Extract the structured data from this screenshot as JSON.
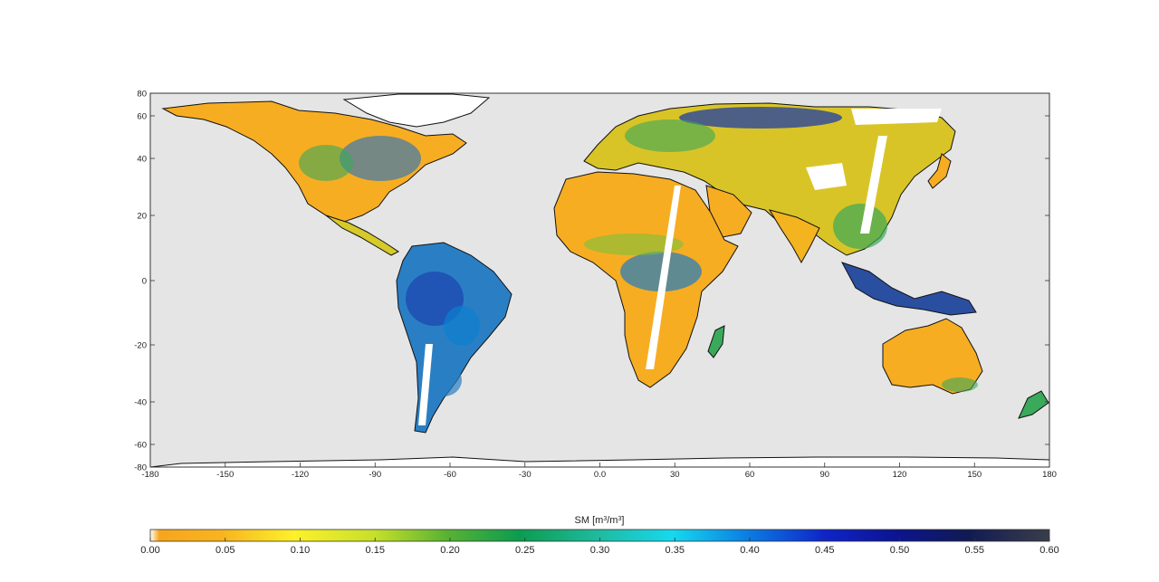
{
  "map": {
    "colorbar_title_base": "SM [m",
    "colorbar_title_sup1": "3",
    "colorbar_title_mid": "/m",
    "colorbar_title_sup2": "3",
    "colorbar_title_end": "]",
    "lon_ticks": [
      "-180",
      "-150",
      "-120",
      "-90",
      "-60",
      "-30",
      "0.0",
      "30",
      "60",
      "90",
      "120",
      "150",
      "180"
    ],
    "lat_ticks": [
      "80",
      "60",
      "40",
      "20",
      "0",
      "-20",
      "-40",
      "-60",
      "-80"
    ],
    "colorbar_ticks": [
      "0.00",
      "0.05",
      "0.10",
      "0.15",
      "0.20",
      "0.25",
      "0.30",
      "0.35",
      "0.40",
      "0.45",
      "0.50",
      "0.55",
      "0.60"
    ],
    "colorbar_range": [
      0.0,
      0.6
    ],
    "colors": {
      "ocean": "#e5e5e5",
      "coast": "#111111",
      "no_data": "#ffffff",
      "dry": "#f7ad22",
      "moderate": "#3aa95a",
      "wet": "#1e4bb3"
    }
  }
}
